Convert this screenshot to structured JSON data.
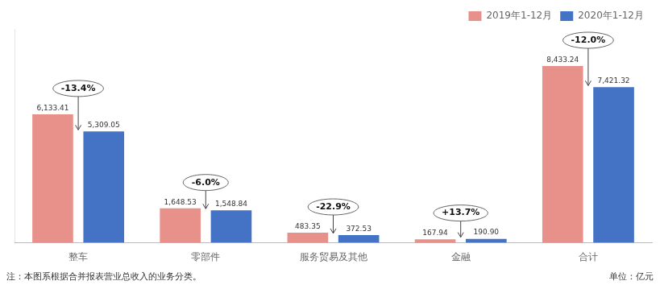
{
  "chart_data": {
    "type": "bar",
    "categories": [
      "整车",
      "零部件",
      "服务贸易及其他",
      "金融",
      "合计"
    ],
    "series": [
      {
        "name": "2019年1-12月",
        "color": "#E8918A",
        "values": [
          6133.41,
          1648.53,
          483.35,
          167.94,
          8433.24
        ],
        "value_labels": [
          "6,133.41",
          "1,648.53",
          "483.35",
          "167.94",
          "8,433.24"
        ]
      },
      {
        "name": "2020年1-12月",
        "color": "#4472C4",
        "values": [
          5309.05,
          1548.84,
          372.53,
          190.9,
          7421.32
        ],
        "value_labels": [
          "5,309.05",
          "1,548.84",
          "372.53",
          "190.90",
          "7,421.32"
        ]
      }
    ],
    "annotations": [
      "-13.4%",
      "-6.0%",
      "-22.9%",
      "+13.7%",
      "-12.0%"
    ],
    "note": "注：本图系根据合并报表营业总收入的业务分类。",
    "unit": "单位：亿元",
    "ylim": [
      0,
      10200
    ],
    "yticks": [],
    "grid": false,
    "tick_labels": "x",
    "legend": "upper right",
    "data_labels": true
  }
}
